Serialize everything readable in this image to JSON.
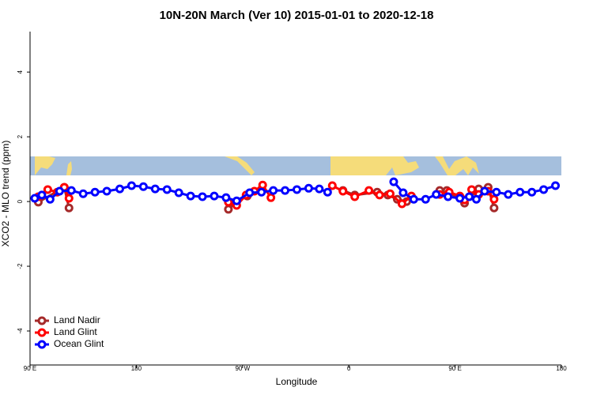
{
  "chart_data": {
    "type": "line",
    "title": "10N-20N March (Ver 10)   2015-01-01 to 2020-12-18",
    "x_label": "Longitude",
    "y_label": "XCO2 - MLO trend (ppm)",
    "xlim": [
      90,
      540
    ],
    "ylim": [
      -5.05,
      5.25
    ],
    "xticks": [
      {
        "value": 90,
        "label": "90 E"
      },
      180,
      {
        "value": 270,
        "label": "90 W"
      },
      {
        "value": 360,
        "label": "0"
      },
      {
        "value": 450,
        "label": "90 E"
      },
      {
        "value": 540,
        "label": "180"
      }
    ],
    "yticks": [
      -4,
      -2,
      0,
      2,
      4
    ],
    "legend": "bottomleft",
    "series": [
      {
        "name": "Land Nadir",
        "color": "#a52a2a",
        "x": [
          97,
          119,
          123,
          null,
          258,
          265,
          274,
          286,
          null,
          355,
          365,
          384,
          393,
          401,
          409,
          null,
          437,
          443,
          458,
          470,
          478,
          483
        ],
        "values": [
          -0.02,
          0.44,
          -0.2,
          null,
          -0.24,
          0,
          0.17,
          0.37,
          null,
          0.34,
          0.2,
          0.29,
          0.2,
          0.07,
          0,
          null,
          0.34,
          0.34,
          -0.05,
          0.39,
          0.44,
          -0.2
        ]
      },
      {
        "name": "Land Glint",
        "color": "#ff0000",
        "x": [
          97,
          105,
          113,
          119,
          123,
          null,
          258,
          265,
          273,
          280,
          287,
          294,
          null,
          346,
          355,
          365,
          377,
          386,
          395,
          405,
          413,
          null,
          437,
          445,
          454,
          458,
          464,
          470,
          478,
          483
        ],
        "values": [
          0.15,
          0.37,
          0.29,
          0.44,
          0.1,
          null,
          -0.02,
          -0.12,
          0.2,
          0.32,
          0.51,
          0.12,
          null,
          0.49,
          0.32,
          0.15,
          0.34,
          0.2,
          0.24,
          -0.07,
          0.17,
          null,
          0.22,
          0.29,
          0.17,
          0.05,
          0.37,
          0.22,
          0.32,
          0.07
        ]
      },
      {
        "name": "Ocean Glint",
        "color": "#0000ff",
        "x": [
          94,
          100,
          107,
          115,
          125,
          135,
          145,
          155,
          166,
          176,
          186,
          196,
          206,
          216,
          226,
          236,
          246,
          256,
          265,
          276,
          286,
          296,
          306,
          316,
          326,
          335,
          342,
          null,
          398,
          406,
          415,
          425,
          434,
          444,
          454,
          462,
          468,
          475,
          485,
          495,
          505,
          515,
          525,
          535
        ],
        "values": [
          0.1,
          0.2,
          0.07,
          0.32,
          0.34,
          0.24,
          0.29,
          0.32,
          0.39,
          0.49,
          0.46,
          0.39,
          0.37,
          0.27,
          0.17,
          0.15,
          0.17,
          0.12,
          0.02,
          0.27,
          0.29,
          0.34,
          0.34,
          0.37,
          0.41,
          0.39,
          0.29,
          null,
          0.61,
          0.27,
          0.07,
          0.07,
          0.22,
          0.15,
          0.1,
          0.15,
          0.07,
          0.32,
          0.29,
          0.22,
          0.29,
          0.29,
          0.37,
          0.49
        ]
      }
    ]
  }
}
